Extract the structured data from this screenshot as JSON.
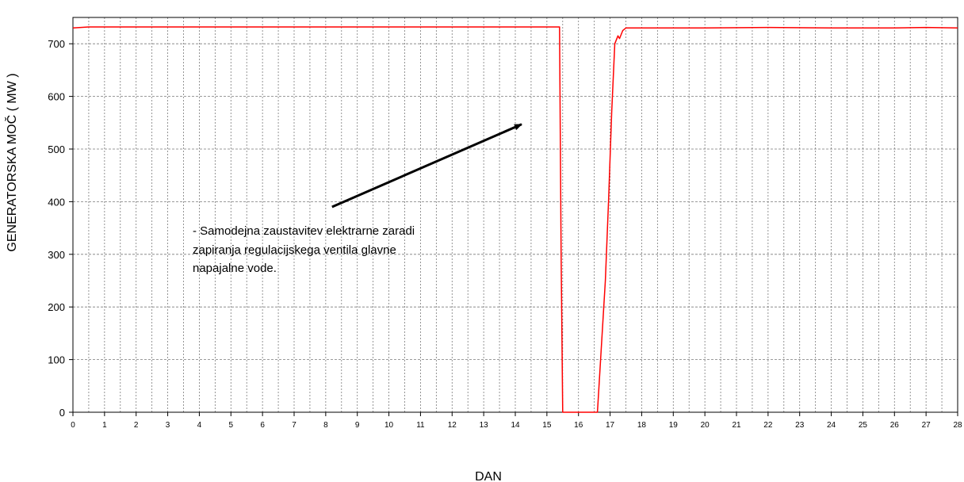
{
  "chart_data": {
    "type": "line",
    "title": "",
    "xlabel": "DAN",
    "ylabel": "GENERATORSKA MOČ ( MW )",
    "xlim": [
      0,
      28
    ],
    "ylim": [
      0,
      750
    ],
    "x_ticks": [
      0,
      1,
      2,
      3,
      4,
      5,
      6,
      7,
      8,
      9,
      10,
      11,
      12,
      13,
      14,
      15,
      16,
      17,
      18,
      19,
      20,
      21,
      22,
      23,
      24,
      25,
      26,
      27,
      28
    ],
    "y_ticks": [
      0,
      100,
      200,
      300,
      400,
      500,
      600,
      700
    ],
    "grid": true,
    "legend": "none",
    "line_color": "#ff0000",
    "series": [
      {
        "x": [
          0,
          0.5,
          3,
          6,
          9,
          12,
          15.4,
          15.45,
          15.5,
          16,
          16.6,
          16.7,
          16.85,
          16.95,
          17.05,
          17.15,
          17.25,
          17.3,
          17.4,
          17.5,
          17.6,
          18,
          20,
          22,
          24,
          26,
          27,
          28
        ],
        "y": [
          730,
          732,
          732,
          732,
          732,
          732,
          732,
          300,
          0,
          0,
          0,
          100,
          250,
          400,
          570,
          700,
          715,
          710,
          725,
          730,
          730,
          730,
          730,
          731,
          730,
          730,
          731,
          730
        ]
      }
    ],
    "annotations": [
      {
        "lines": [
          "- Samodejna zaustavitev elektrarne zaradi",
          "zapiranja regulacijskega ventila glavne",
          "napajalne vode."
        ],
        "arrow_from": [
          8.2,
          390
        ],
        "arrow_to": [
          14.2,
          547
        ]
      }
    ]
  }
}
